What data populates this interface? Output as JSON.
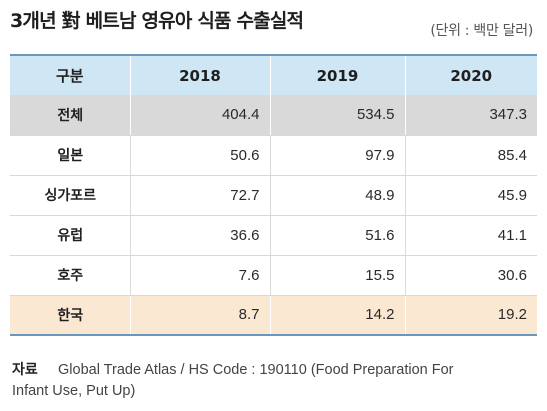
{
  "title": "3개년 對 베트남 영유아 식품 수출실적",
  "unit": "(단위 : 백만 달러)",
  "table": {
    "headers": [
      "구분",
      "2018",
      "2019",
      "2020"
    ],
    "rows": [
      {
        "label": "전체",
        "values": [
          "404.4",
          "534.5",
          "347.3"
        ]
      },
      {
        "label": "일본",
        "values": [
          "50.6",
          "97.9",
          "85.4"
        ]
      },
      {
        "label": "싱가포르",
        "values": [
          "72.7",
          "48.9",
          "45.9"
        ]
      },
      {
        "label": "유럽",
        "values": [
          "36.6",
          "51.6",
          "41.1"
        ]
      },
      {
        "label": "호주",
        "values": [
          "7.6",
          "15.5",
          "30.6"
        ]
      },
      {
        "label": "한국",
        "values": [
          "8.7",
          "14.2",
          "19.2"
        ]
      }
    ]
  },
  "source": {
    "label": "자료",
    "line1": "Global Trade Atlas / HS Code : 190110 (Food Preparation For",
    "line2": "Infant Use, Put Up)"
  },
  "colors": {
    "header_bg": "#cfe6f4",
    "total_row_bg": "#d9d9d9",
    "highlight_row_bg": "#fbe8d2",
    "rule": "#6a98bd"
  }
}
